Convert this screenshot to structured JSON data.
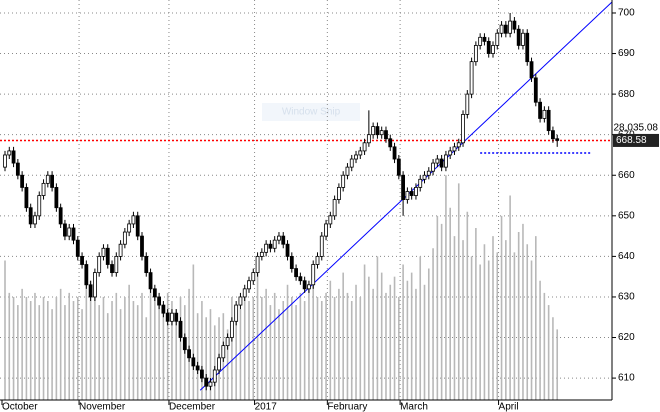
{
  "chart_data": {
    "type": "candlestick",
    "categories": [
      "October",
      null,
      null,
      null,
      null,
      null,
      null,
      null,
      null,
      null,
      null,
      null,
      null,
      null,
      null,
      null,
      null,
      null,
      "November",
      null,
      null,
      null,
      null,
      null,
      null,
      null,
      null,
      null,
      null,
      null,
      null,
      null,
      null,
      null,
      null,
      null,
      null,
      null,
      null,
      "December",
      null,
      null,
      null,
      null,
      null,
      null,
      null,
      null,
      null,
      null,
      null,
      null,
      null,
      null,
      null,
      null,
      null,
      null,
      null,
      "2017",
      null,
      null,
      null,
      null,
      null,
      null,
      null,
      null,
      null,
      null,
      null,
      null,
      null,
      null,
      null,
      null,
      "February",
      null,
      null,
      null,
      null,
      null,
      null,
      null,
      null,
      null,
      null,
      null,
      null,
      null,
      null,
      null,
      null,
      "March",
      null,
      null,
      null,
      null,
      null,
      null,
      null,
      null,
      null,
      null,
      null,
      null,
      null,
      null,
      null,
      null,
      null,
      null,
      null,
      null,
      null,
      null,
      "April",
      null,
      null,
      null,
      null,
      null,
      null,
      null,
      null,
      null,
      null,
      null,
      null,
      null
    ],
    "open": [
      662,
      665,
      666,
      663,
      660,
      657,
      652,
      648,
      650,
      655,
      658,
      660,
      657,
      652,
      648,
      645,
      647,
      644,
      640,
      638,
      633,
      630,
      636,
      640,
      642,
      638,
      636,
      640,
      643,
      646,
      648,
      650,
      645,
      640,
      636,
      632,
      630,
      628,
      626,
      624,
      626,
      624,
      620,
      617,
      615,
      613,
      612,
      610,
      608,
      609,
      612,
      615,
      618,
      620,
      624,
      628,
      630,
      632,
      634,
      636,
      640,
      641,
      643,
      642,
      644,
      645,
      643,
      640,
      637,
      635,
      634,
      632,
      633,
      638,
      640,
      645,
      648,
      650,
      654,
      657,
      660,
      662,
      664,
      665,
      666,
      668,
      670,
      672,
      670,
      671,
      669,
      667,
      664,
      660,
      654,
      656,
      655,
      657,
      659,
      660,
      661,
      663,
      664,
      662,
      665,
      666,
      667,
      668,
      675,
      680,
      688,
      692,
      694,
      693,
      690,
      692,
      695,
      697,
      695,
      698,
      696,
      692,
      695,
      688,
      684,
      678,
      674,
      676,
      671,
      669
    ],
    "high": [
      666,
      667,
      667,
      664,
      661,
      658,
      653,
      651,
      656,
      659,
      661,
      661,
      658,
      653,
      649,
      648,
      648,
      645,
      641,
      639,
      634,
      637,
      641,
      643,
      643,
      639,
      641,
      644,
      647,
      649,
      651,
      651,
      646,
      641,
      637,
      633,
      631,
      629,
      627,
      627,
      627,
      625,
      621,
      618,
      616,
      614,
      613,
      611,
      610,
      613,
      616,
      619,
      621,
      625,
      629,
      631,
      633,
      635,
      637,
      641,
      642,
      644,
      644,
      645,
      646,
      646,
      644,
      641,
      638,
      636,
      635,
      634,
      639,
      641,
      646,
      649,
      651,
      655,
      658,
      661,
      663,
      665,
      666,
      667,
      669,
      676,
      673,
      673,
      672,
      672,
      670,
      668,
      665,
      661,
      657,
      657,
      658,
      660,
      661,
      662,
      664,
      665,
      665,
      666,
      667,
      668,
      669,
      676,
      681,
      689,
      693,
      695,
      695,
      694,
      693,
      696,
      698,
      698,
      700,
      699,
      697,
      696,
      696,
      689,
      685,
      679,
      677,
      677,
      672,
      670
    ],
    "low": [
      661,
      664,
      662,
      659,
      656,
      651,
      647,
      647,
      649,
      654,
      657,
      656,
      651,
      647,
      644,
      644,
      643,
      639,
      637,
      632,
      629,
      629,
      635,
      639,
      637,
      635,
      635,
      639,
      642,
      645,
      647,
      644,
      639,
      635,
      631,
      629,
      627,
      625,
      623,
      623,
      623,
      619,
      616,
      614,
      612,
      611,
      609,
      607,
      607,
      608,
      611,
      614,
      617,
      619,
      623,
      627,
      629,
      631,
      633,
      635,
      639,
      640,
      641,
      641,
      643,
      642,
      639,
      636,
      634,
      633,
      631,
      631,
      632,
      637,
      639,
      644,
      647,
      649,
      653,
      656,
      659,
      661,
      663,
      664,
      665,
      667,
      669,
      669,
      669,
      668,
      666,
      663,
      659,
      650,
      653,
      654,
      654,
      656,
      658,
      659,
      660,
      662,
      661,
      661,
      664,
      665,
      666,
      667,
      674,
      679,
      687,
      691,
      692,
      689,
      689,
      691,
      694,
      694,
      694,
      695,
      691,
      691,
      687,
      683,
      677,
      673,
      673,
      670,
      668,
      667
    ],
    "close": [
      665,
      666,
      663,
      660,
      657,
      652,
      648,
      650,
      655,
      658,
      660,
      657,
      652,
      648,
      645,
      647,
      644,
      640,
      638,
      633,
      630,
      636,
      640,
      642,
      638,
      636,
      640,
      643,
      646,
      648,
      650,
      645,
      640,
      636,
      632,
      630,
      628,
      626,
      624,
      626,
      624,
      620,
      617,
      615,
      613,
      612,
      610,
      608,
      609,
      612,
      615,
      618,
      620,
      624,
      628,
      630,
      632,
      634,
      636,
      640,
      641,
      643,
      642,
      644,
      645,
      643,
      640,
      637,
      635,
      634,
      632,
      633,
      638,
      640,
      645,
      648,
      650,
      654,
      657,
      660,
      662,
      664,
      665,
      666,
      668,
      670,
      672,
      670,
      671,
      669,
      667,
      664,
      660,
      654,
      656,
      655,
      657,
      659,
      660,
      661,
      663,
      664,
      662,
      665,
      666,
      667,
      668,
      675,
      680,
      688,
      692,
      694,
      693,
      690,
      692,
      695,
      697,
      695,
      698,
      696,
      692,
      695,
      688,
      684,
      678,
      674,
      676,
      671,
      669,
      668.58
    ],
    "volume": [
      639,
      631,
      630,
      628,
      632,
      630,
      629,
      631,
      628,
      630,
      629,
      627,
      630,
      632,
      628,
      631,
      629,
      630,
      627,
      636,
      634,
      631,
      628,
      630,
      626,
      629,
      631,
      627,
      630,
      633,
      629,
      628,
      631,
      625,
      632,
      630,
      628,
      626,
      631,
      629,
      627,
      630,
      628,
      632,
      638,
      626,
      629,
      625,
      627,
      623,
      625,
      626,
      622,
      630,
      628,
      627,
      631,
      629,
      630,
      638,
      630,
      632,
      628,
      631,
      627,
      629,
      633,
      630,
      628,
      631,
      629,
      632,
      637,
      630,
      629,
      631,
      634,
      630,
      632,
      636,
      631,
      629,
      633,
      630,
      638,
      635,
      632,
      640,
      636,
      631,
      633,
      635,
      630,
      638,
      634,
      636,
      632,
      640,
      633,
      637,
      642,
      650,
      648,
      660,
      652,
      645,
      658,
      644,
      651,
      640,
      647,
      638,
      643,
      639,
      645,
      641,
      650,
      644,
      655,
      641,
      646,
      648,
      643,
      639,
      645,
      634,
      631,
      628,
      625,
      622
    ],
    "color": "#000000",
    "volume_color": "#b8b8b8",
    "xlim": [
      -1.17,
      141.8
    ],
    "ylim": [
      604.6,
      703.2
    ],
    "yticks": [
      610,
      620,
      630,
      640,
      650,
      660,
      670,
      680,
      690,
      700
    ],
    "grid": true,
    "trendlines": [
      {
        "x": [
          45.6,
          141.8
        ],
        "y": [
          607,
          702.7
        ],
        "color": "#0000ff"
      }
    ],
    "hlines": [
      {
        "value": 668.58,
        "x": [
          -1.17,
          141.8
        ],
        "color": "#ff0000"
      },
      {
        "value": 665.5,
        "x": [
          111,
          137
        ],
        "color": "#0000ff"
      }
    ],
    "index_label": "28,035.08",
    "watermark": "Window Snip"
  }
}
